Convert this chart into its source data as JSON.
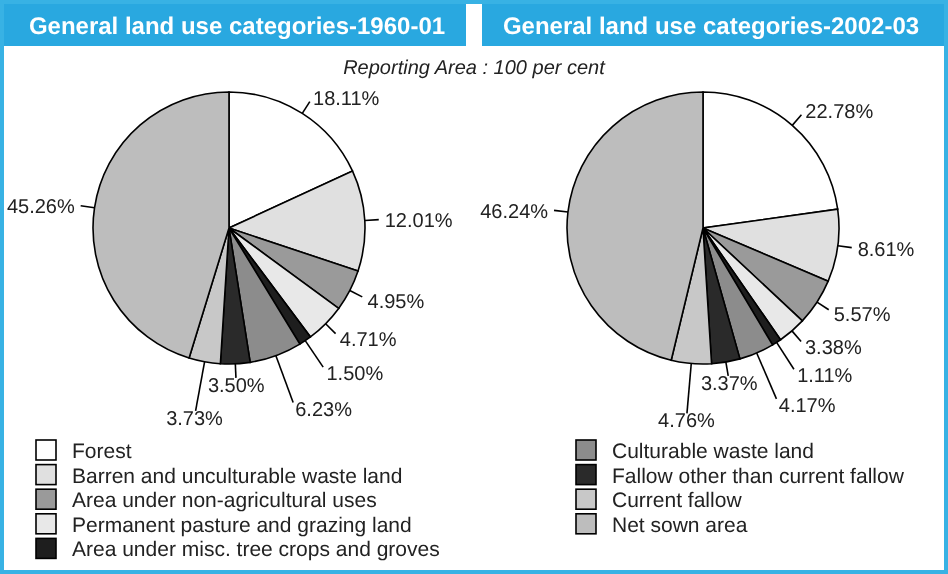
{
  "chart_data": [
    {
      "type": "pie",
      "title": "General land use categories-1960-01",
      "annotations": [
        "Reporting Area : 100 per cent"
      ],
      "legend": "bottom",
      "categories": [
        "Forest",
        "Barren and unculturable waste land",
        "Area under non-agricultural uses",
        "Permanent pasture and grazing land",
        "Area under misc. tree crops and groves",
        "Culturable waste land",
        "Fallow other than current fallow",
        "Current fallow",
        "Net sown area"
      ],
      "values": [
        18.11,
        12.01,
        4.95,
        4.71,
        1.5,
        6.23,
        3.5,
        3.73,
        45.26
      ],
      "value_labels": [
        "18.11%",
        "12.01%",
        "4.95%",
        "4.71%",
        "1.50%",
        "6.23%",
        "3.50%",
        "3.73%",
        "45.26%"
      ],
      "colors": [
        "#ffffff",
        "#e0e0e0",
        "#9a9a9a",
        "#e8e8e8",
        "#1e1e1e",
        "#8c8c8c",
        "#2a2a2a",
        "#c8c8c8",
        "#bdbdbd"
      ]
    },
    {
      "type": "pie",
      "title": "General land use categories-2002-03",
      "categories": [
        null,
        null,
        null,
        null,
        null,
        null,
        null,
        null,
        null
      ],
      "values": [
        22.78,
        8.61,
        5.57,
        3.38,
        1.11,
        4.17,
        3.37,
        4.76,
        46.24
      ],
      "value_labels": [
        "22.78%",
        "8.61%",
        "5.57%",
        "3.38%",
        "1.11%",
        "4.17%",
        "3.37%",
        "4.76%",
        "46.24%"
      ],
      "colors": [
        "#ffffff",
        "#e0e0e0",
        "#9a9a9a",
        "#e8e8e8",
        "#1e1e1e",
        "#8c8c8c",
        "#2a2a2a",
        "#c8c8c8",
        "#bdbdbd"
      ]
    }
  ]
}
